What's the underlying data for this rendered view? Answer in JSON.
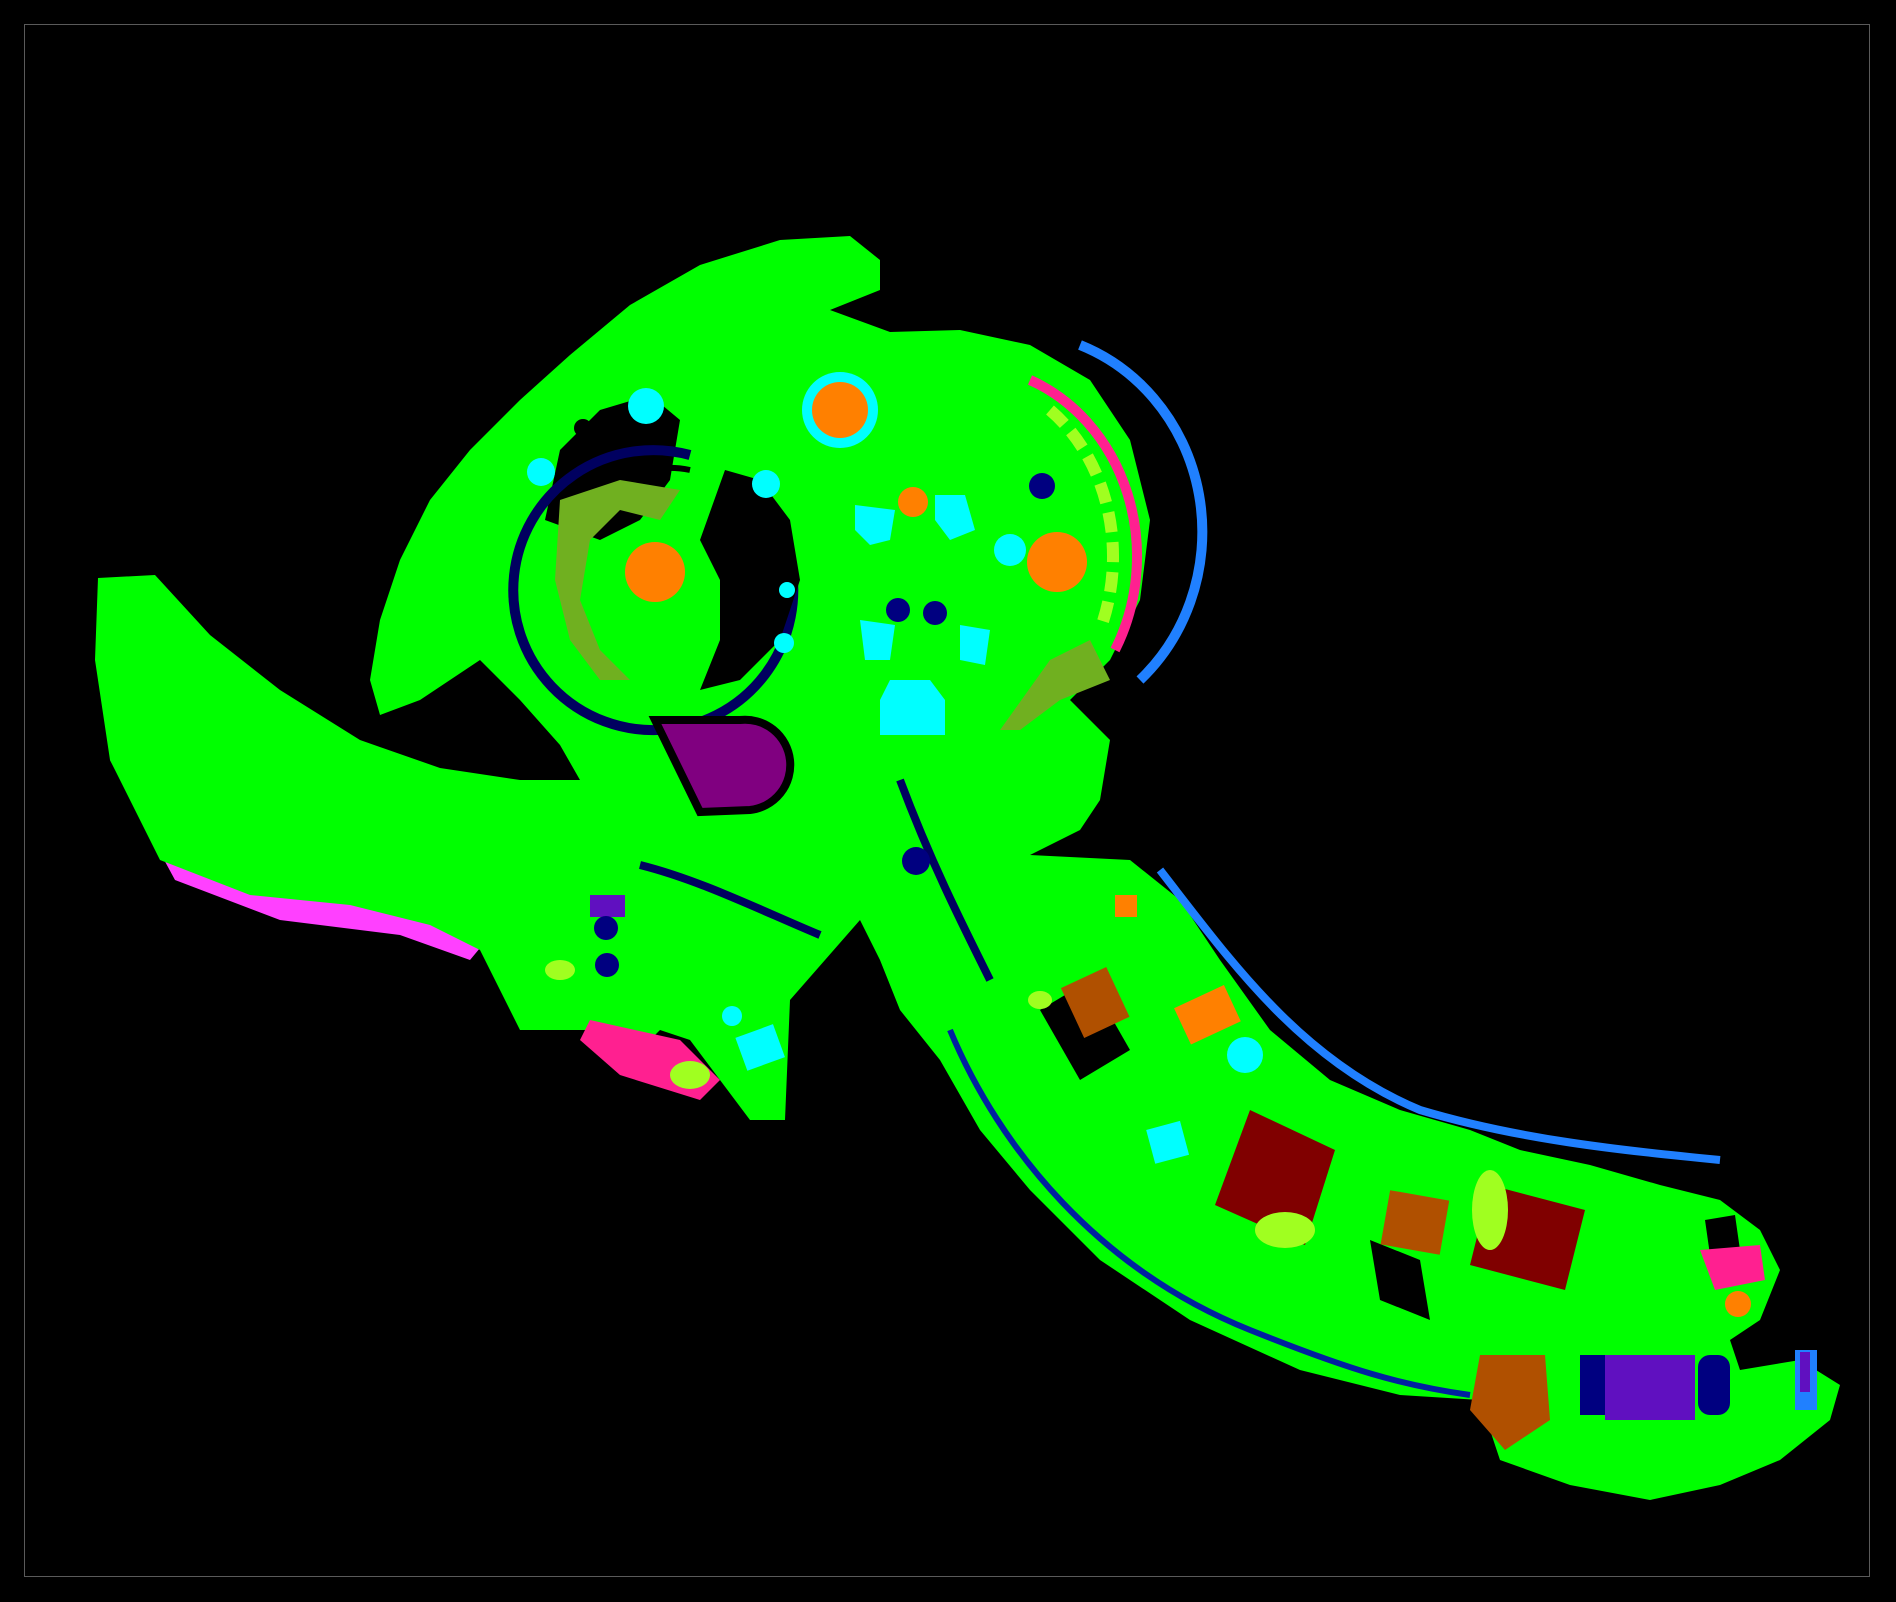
{
  "map": {
    "kind": "semantic-segmentation floor map",
    "background": "#000000",
    "border_color": "#5a5a5a",
    "class_colors": {
      "floor": "#00ff00",
      "table": "#00ffff",
      "round-object": "#ff8000",
      "seat": "#000080",
      "wall-outline": "#000060",
      "counter": "#800080",
      "rug": "#ff40ff",
      "planter": "#ff2090",
      "railing": "#2080ff",
      "shrub": "#a0ff20",
      "terrace": "#70b020",
      "cabinet": "#b05000",
      "large-table": "#800000",
      "box": "#6010c0"
    }
  }
}
